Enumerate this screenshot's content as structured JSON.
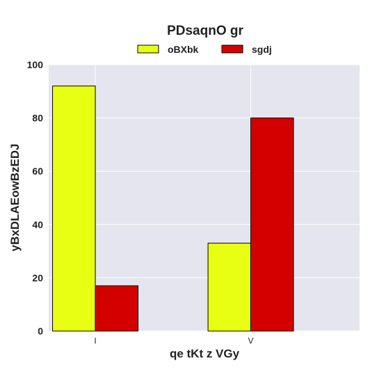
{
  "chart_data": {
    "type": "bar",
    "title": "PDsaqnO  gr",
    "xlabel": "qe tKt z VGy",
    "ylabel": "yBxDLAEowBzEDJ",
    "categories": [
      "I",
      "V"
    ],
    "series": [
      {
        "name": "oBXbk",
        "values": [
          92,
          33
        ],
        "color": "#e8ff14"
      },
      {
        "name": "sgdj",
        "values": [
          17,
          80
        ],
        "color": "#d40000"
      }
    ],
    "ylim": [
      0,
      100
    ],
    "yticks": [
      0,
      20,
      40,
      60,
      80,
      100
    ],
    "grid": true,
    "legend": "top-center",
    "background": "#e5e5ef"
  }
}
